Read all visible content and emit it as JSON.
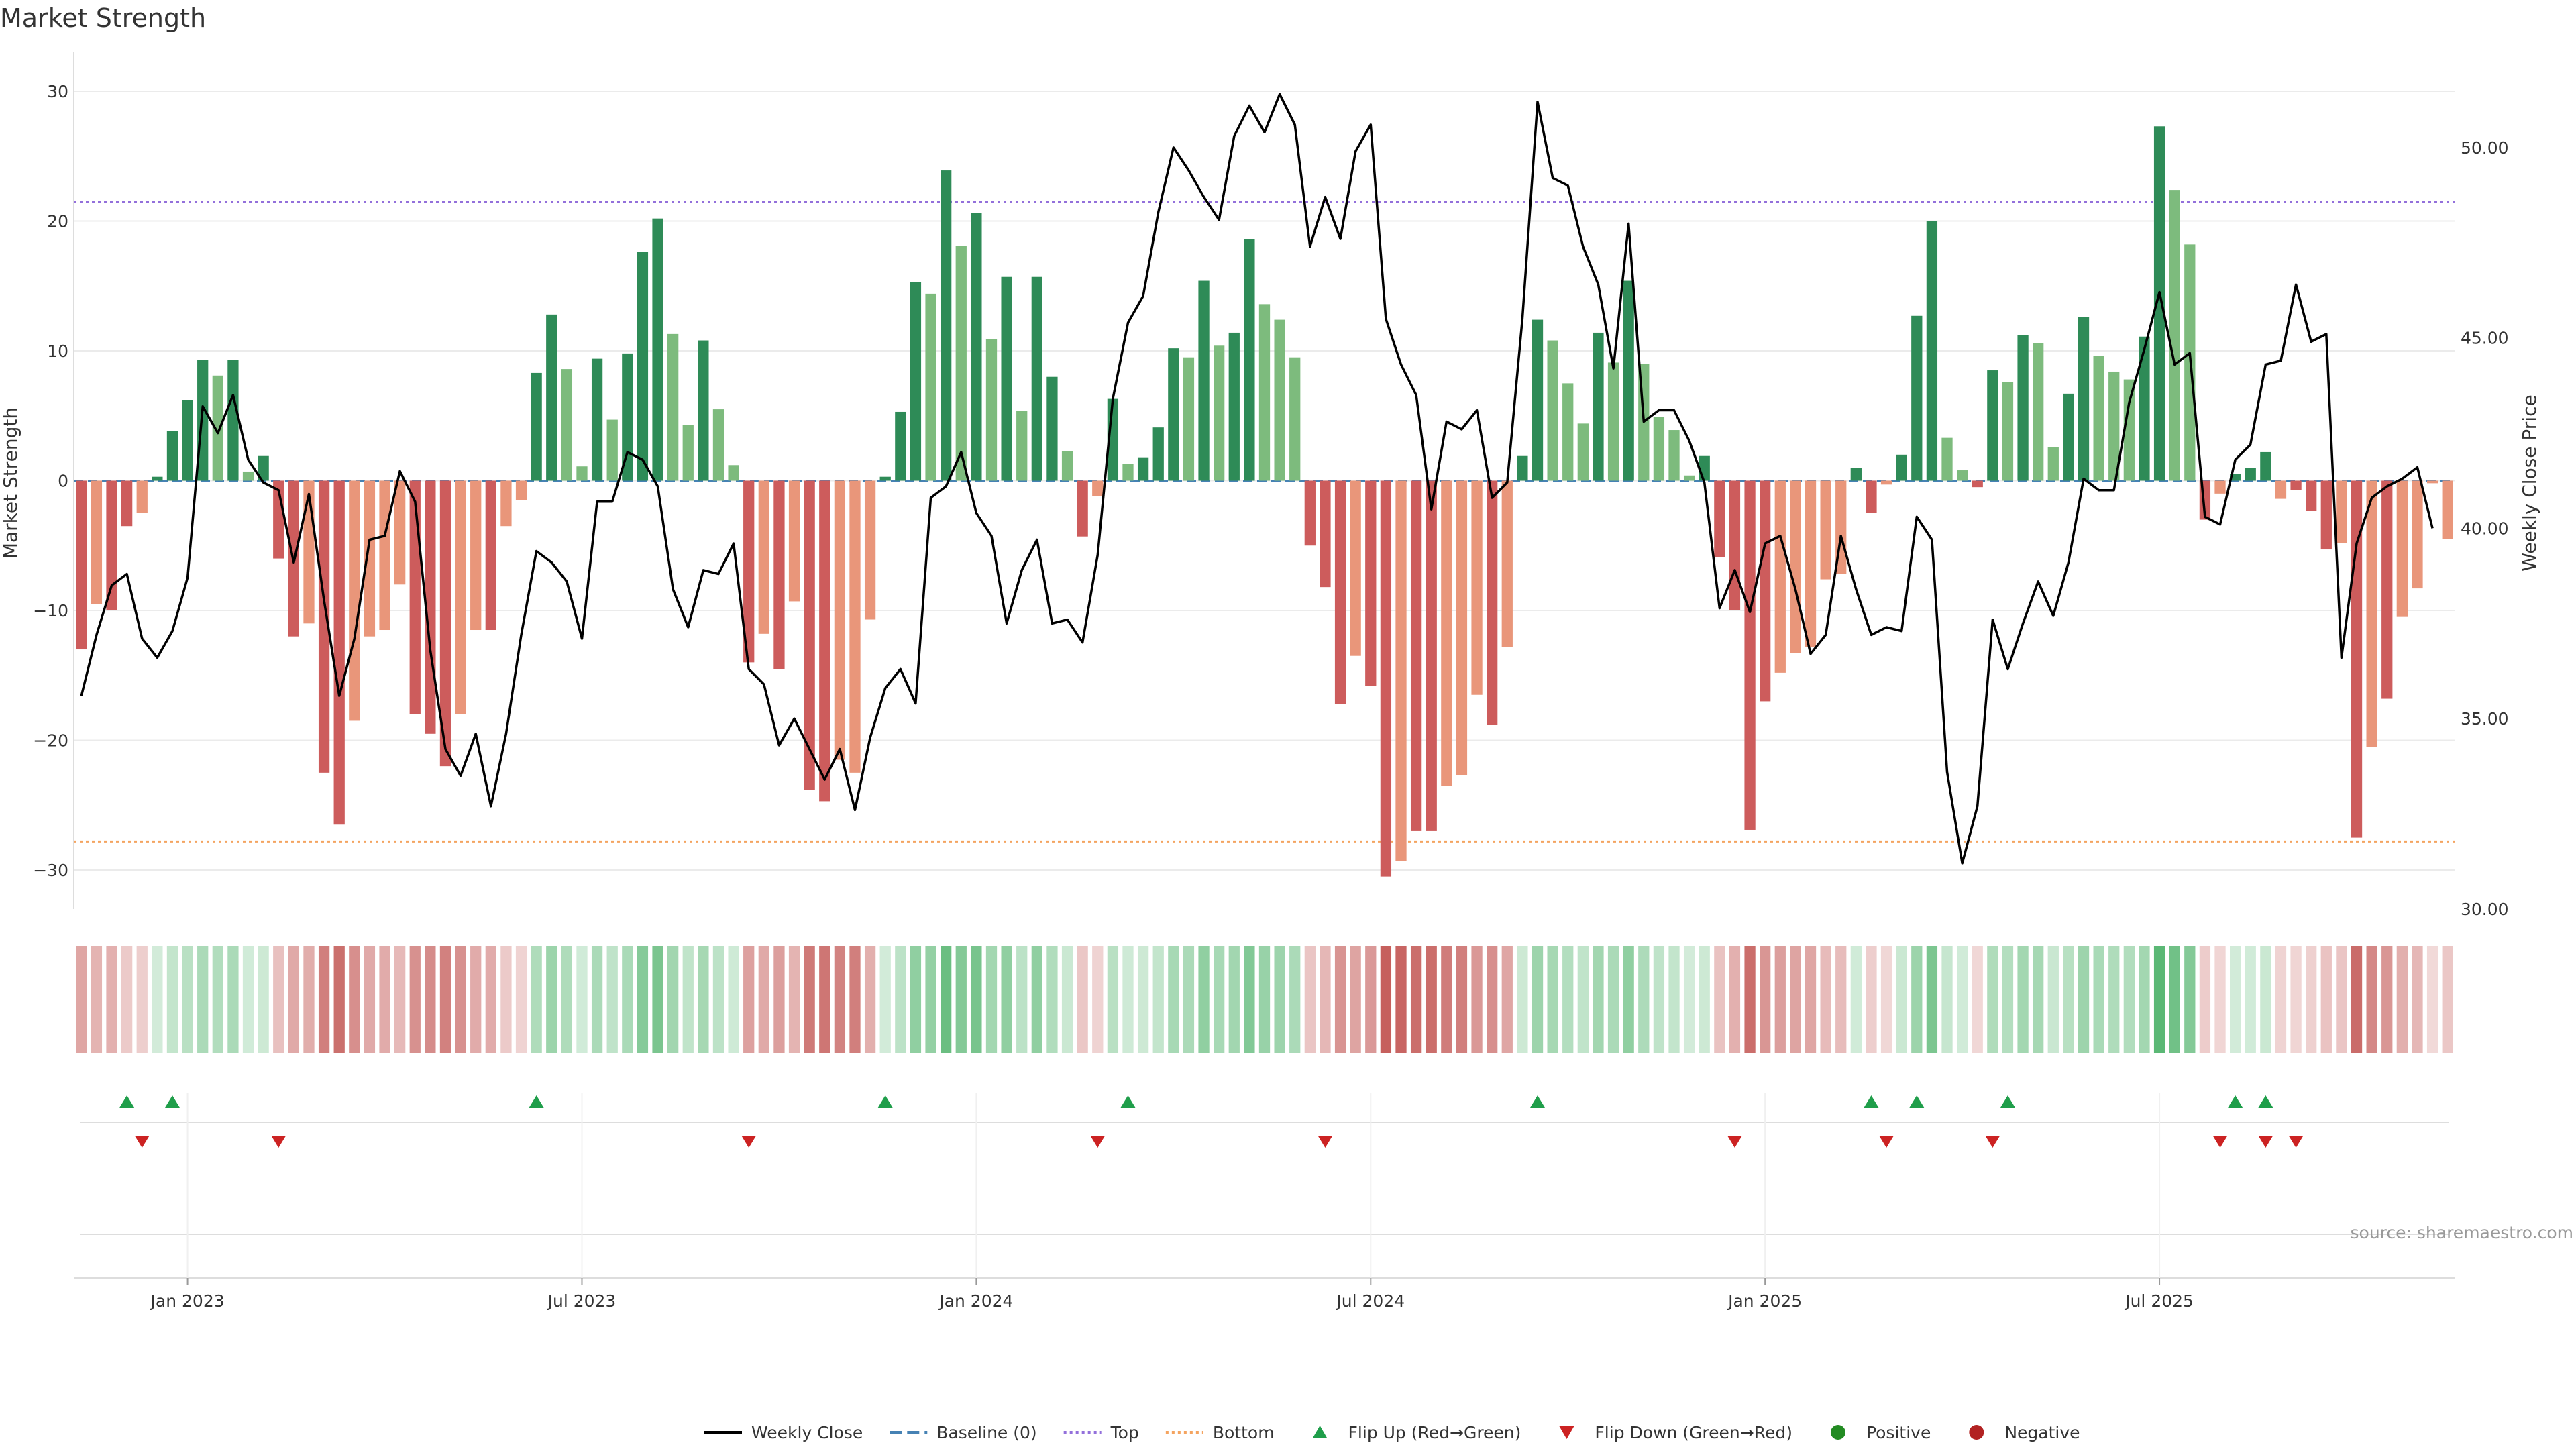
{
  "title": "Market Strength",
  "source": "source: sharemaestro.com",
  "colors": {
    "pos_strong": "#2e8b57",
    "pos_light": "#7dbb7d",
    "neg_strong": "#cd5c5c",
    "neg_light": "#e9967a",
    "price_line": "#000000",
    "baseline": "#4682b4",
    "top_line": "#9370db",
    "bottom_line": "#f4a460",
    "flip_up": "#1f9e4a",
    "flip_down": "#cc2222",
    "positive_dot": "#228b22",
    "negative_dot": "#b22222",
    "grid": "#ebebeb"
  },
  "chart_data": {
    "type": "bar",
    "title": "Market Strength",
    "ylabel": "Market Strength",
    "y2label": "Weekly Close Price",
    "ylim": [
      -33,
      33
    ],
    "y2lim": [
      30,
      52.5
    ],
    "yticks": [
      -30,
      -20,
      -10,
      0,
      10,
      20,
      30
    ],
    "y2ticks": [
      "30.00",
      "35.00",
      "40.00",
      "45.00",
      "50.00"
    ],
    "xlabels": [
      "Jan 2023",
      "Jul 2023",
      "Jan 2024",
      "Jul 2024",
      "Jan 2025",
      "Jul 2025"
    ],
    "xlabel_weeks": [
      7.5,
      33.5,
      59.5,
      85.5,
      111.5,
      137.5
    ],
    "top_threshold": 21.5,
    "bottom_threshold": -27.8,
    "baseline": 0,
    "strength": [
      -13,
      -9.5,
      -10,
      -3.5,
      -2.5,
      0.3,
      3.8,
      6.2,
      9.3,
      8.1,
      9.3,
      0.7,
      1.9,
      -6,
      -12,
      -11,
      -22.5,
      -26.5,
      -18.5,
      -12,
      -11.5,
      -8,
      -18,
      -19.5,
      -22,
      -18,
      -11.5,
      -11.5,
      -3.5,
      -1.5,
      8.3,
      12.8,
      8.6,
      1.1,
      9.4,
      4.7,
      9.8,
      17.6,
      20.2,
      11.3,
      4.3,
      10.8,
      5.5,
      1.2,
      -14,
      -11.8,
      -14.5,
      -9.3,
      -23.8,
      -24.7,
      -21.5,
      -22.5,
      -10.7,
      0.3,
      5.3,
      15.3,
      14.4,
      23.9,
      18.1,
      20.6,
      10.9,
      15.7,
      5.4,
      15.7,
      8,
      2.3,
      -4.3,
      -1.2,
      6.3,
      1.3,
      1.8,
      4.1,
      10.2,
      9.5,
      15.4,
      10.4,
      11.4,
      18.6,
      13.6,
      12.4,
      9.5,
      -5,
      -8.2,
      -17.2,
      -13.5,
      -15.8,
      -30.5,
      -29.3,
      -27,
      -27,
      -23.5,
      -22.7,
      -16.5,
      -18.8,
      -12.8,
      1.9,
      12.4,
      10.8,
      7.5,
      4.4,
      11.4,
      9.1,
      15.4,
      9,
      4.9,
      3.9,
      0.4,
      1.9,
      -5.9,
      -10,
      -26.9,
      -17,
      -14.8,
      -13.3,
      -12.8,
      -7.6,
      -7.2,
      1,
      -2.5,
      -0.3,
      2,
      12.7,
      20,
      3.3,
      0.8,
      -0.5,
      8.5,
      7.6,
      11.2,
      10.6,
      2.6,
      6.7,
      12.6,
      9.6,
      8.4,
      7.8,
      11.1,
      27.3,
      22.4,
      18.2,
      -3,
      -1,
      0.5,
      1,
      2.2,
      -1.4,
      -0.7,
      -2.3,
      -5.3,
      -4.8,
      -27.5,
      -20.5,
      -16.8,
      -10.5,
      -8.3,
      -0.2,
      -4.5
    ],
    "shade": [
      1,
      0,
      1,
      1,
      0,
      1,
      1,
      1,
      1,
      0,
      1,
      0,
      1,
      1,
      1,
      0,
      1,
      1,
      0,
      0,
      0,
      0,
      1,
      1,
      1,
      0,
      0,
      1,
      0,
      0,
      1,
      1,
      0,
      0,
      1,
      0,
      1,
      1,
      1,
      0,
      0,
      1,
      0,
      0,
      1,
      0,
      1,
      0,
      1,
      1,
      0,
      0,
      0,
      1,
      1,
      1,
      0,
      1,
      0,
      1,
      0,
      1,
      0,
      1,
      1,
      0,
      1,
      0,
      1,
      0,
      1,
      1,
      1,
      0,
      1,
      0,
      1,
      1,
      0,
      0,
      0,
      1,
      1,
      1,
      0,
      1,
      1,
      0,
      1,
      1,
      0,
      0,
      0,
      1,
      0,
      1,
      1,
      0,
      0,
      0,
      1,
      0,
      1,
      0,
      0,
      0,
      0,
      1,
      1,
      1,
      1,
      1,
      0,
      0,
      0,
      0,
      0,
      1,
      1,
      0,
      1,
      1,
      1,
      0,
      0,
      1,
      1,
      0,
      1,
      0,
      0,
      1,
      1,
      0,
      0,
      0,
      1,
      1,
      0,
      0,
      1,
      0,
      1,
      1,
      1,
      0,
      1,
      1,
      1,
      0,
      1,
      0,
      1,
      0,
      0,
      0,
      0,
      0,
      0,
      1
    ],
    "price": [
      35.6,
      37.2,
      38.5,
      38.8,
      37.1,
      36.6,
      37.3,
      38.7,
      43.2,
      42.5,
      43.5,
      41.8,
      41.2,
      41,
      39.1,
      40.9,
      38.1,
      35.6,
      37.1,
      39.7,
      39.8,
      41.5,
      40.7,
      36.8,
      34.2,
      33.5,
      34.6,
      32.7,
      34.6,
      37.2,
      39.4,
      39.1,
      38.6,
      37.1,
      40.7,
      40.7,
      42,
      41.8,
      41.1,
      38.4,
      37.4,
      38.9,
      38.8,
      39.6,
      36.3,
      35.9,
      34.3,
      35,
      34.2,
      33.4,
      34.2,
      32.6,
      34.5,
      35.8,
      36.3,
      35.4,
      40.8,
      41.1,
      42,
      40.4,
      39.8,
      37.5,
      38.9,
      39.7,
      37.5,
      37.6,
      37,
      39.3,
      43.4,
      45.4,
      46.1,
      48.3,
      50,
      49.4,
      48.7,
      48.1,
      50.3,
      51.1,
      50.4,
      51.4,
      50.6,
      47.4,
      48.7,
      47.6,
      49.9,
      50.6,
      45.5,
      44.3,
      43.5,
      40.5,
      42.8,
      42.6,
      43.1,
      40.8,
      41.2,
      45.5,
      51.2,
      49.2,
      49,
      47.4,
      46.4,
      44.2,
      48,
      42.8,
      43.1,
      43.1,
      42.3,
      41.2,
      37.9,
      38.9,
      37.8,
      39.6,
      39.8,
      38.4,
      36.7,
      37.2,
      39.8,
      38.4,
      37.2,
      37.4,
      37.3,
      40.3,
      39.7,
      33.6,
      31.2,
      32.7,
      37.6,
      36.3,
      37.5,
      38.6,
      37.7,
      39.1,
      41.3,
      41,
      41,
      43.3,
      44.7,
      46.2,
      44.3,
      44.6,
      40.3,
      40.1,
      41.8,
      42.2,
      44.3,
      44.4,
      46.4,
      44.9,
      45.1,
      36.6,
      39.6,
      40.8,
      41.1,
      41.3,
      41.6,
      40
    ],
    "flip_up_weeks": [
      3,
      6,
      30,
      53,
      69,
      96,
      118,
      121,
      127,
      142,
      144
    ],
    "flip_down_weeks": [
      4,
      13,
      44,
      67,
      82,
      109,
      119,
      126,
      141,
      144,
      146
    ]
  },
  "legend": [
    {
      "label": "Weekly Close",
      "icon": "line-solid"
    },
    {
      "label": "Baseline (0)",
      "icon": "line-dashed"
    },
    {
      "label": "Top",
      "icon": "line-dotted-purple"
    },
    {
      "label": "Bottom",
      "icon": "line-dotted-orange"
    },
    {
      "label": "Flip Up (Red→Green)",
      "icon": "triangle-up"
    },
    {
      "label": "Flip Down (Green→Red)",
      "icon": "triangle-down"
    },
    {
      "label": "Positive",
      "icon": "dot-green"
    },
    {
      "label": "Negative",
      "icon": "dot-red"
    }
  ]
}
